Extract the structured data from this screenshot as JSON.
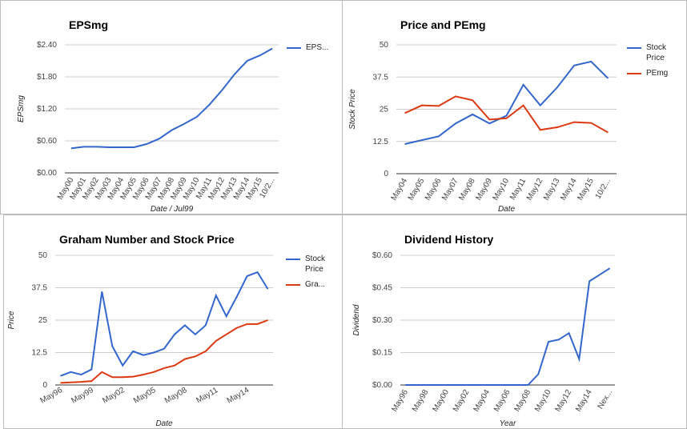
{
  "chart_data": [
    {
      "type": "line",
      "title": "EPSmg",
      "x_label": "Date / Jul99",
      "y_label": "EPSmg",
      "legend": "right",
      "categories": [
        "May00",
        "May01",
        "May02",
        "May03",
        "May04",
        "May05",
        "May06",
        "May07",
        "May08",
        "May09",
        "May10",
        "May11",
        "May12",
        "May13",
        "May14",
        "May15",
        "10/2..."
      ],
      "series": [
        {
          "name": "EPS...",
          "color": "#3366cc",
          "values": [
            0.46,
            0.49,
            0.49,
            0.48,
            0.48,
            0.48,
            0.54,
            0.64,
            0.8,
            0.92,
            1.05,
            1.28,
            1.55,
            1.85,
            2.1,
            2.2,
            2.33
          ]
        }
      ],
      "ylim": [
        0,
        2.4
      ],
      "yticks": [
        {
          "value": 0,
          "label": "$0.00"
        },
        {
          "value": 0.6,
          "label": "$0.60"
        },
        {
          "value": 1.2,
          "label": "$1.20"
        },
        {
          "value": 1.8,
          "label": "$1.80"
        },
        {
          "value": 2.4,
          "label": "$2.40"
        }
      ],
      "grid": true
    },
    {
      "type": "line",
      "title": "Price and PEmg",
      "x_label": "Date",
      "y_label": "Stock Price",
      "legend": "right",
      "categories": [
        "May04",
        "May05",
        "May06",
        "May07",
        "May08",
        "May09",
        "May10",
        "May11",
        "May12",
        "May13",
        "May14",
        "May15",
        "10/2..."
      ],
      "series": [
        {
          "name": "Stock Price",
          "color": "#3366cc",
          "values": [
            11.5,
            13,
            14.5,
            19.5,
            23,
            19.5,
            22.5,
            34.5,
            26.5,
            33.5,
            42,
            43.5,
            37
          ]
        },
        {
          "name": "PEmg",
          "color": "#dc3912",
          "values": [
            23.5,
            26.5,
            26.3,
            30,
            28.5,
            21,
            21.5,
            26.5,
            17,
            18,
            20,
            19.7,
            16
          ]
        }
      ],
      "ylim": [
        0,
        50
      ],
      "yticks": [
        0,
        12.5,
        25,
        37.5,
        50
      ],
      "grid": true
    },
    {
      "type": "line",
      "title": "Graham Number and Stock Price",
      "x_label": "Date",
      "y_label": "Price",
      "legend": "right",
      "categories": [
        "May96",
        null,
        null,
        "May99",
        null,
        null,
        "May02",
        null,
        null,
        "May05",
        null,
        null,
        "May08",
        null,
        null,
        "May11",
        null,
        null,
        "May14",
        null,
        null
      ],
      "series": [
        {
          "name": "Stock Price",
          "color": "#3366cc",
          "values": [
            3.5,
            5,
            4,
            6,
            36,
            15,
            7.5,
            13,
            11.5,
            12.5,
            14,
            19.5,
            23,
            19.5,
            23,
            34.5,
            26.5,
            34,
            42,
            43.5,
            37
          ]
        },
        {
          "name": "Gra...",
          "color": "#dc3912",
          "values": [
            0.8,
            1,
            1.2,
            1.5,
            5,
            3,
            3,
            3.2,
            4,
            5,
            6.5,
            7.5,
            10,
            11,
            13,
            17,
            19.5,
            22,
            23.5,
            23.5,
            25
          ]
        }
      ],
      "ylim": [
        0,
        50
      ],
      "yticks": [
        0,
        12.5,
        25,
        37.5,
        50
      ],
      "grid": true
    },
    {
      "type": "line",
      "title": "Dividend History",
      "x_label": "Year",
      "y_label": "Dividend",
      "categories": [
        "May96",
        null,
        "May98",
        null,
        "May00",
        null,
        "May02",
        null,
        "May04",
        null,
        "May06",
        null,
        "May08",
        null,
        "May10",
        null,
        "May12",
        null,
        "May14",
        null,
        "Nex..."
      ],
      "series": [
        {
          "color": "#3366cc",
          "values": [
            0,
            0,
            0,
            0,
            0,
            0,
            0,
            0,
            0,
            0,
            0,
            0,
            0,
            0.05,
            0.2,
            0.21,
            0.24,
            0.12,
            0.48,
            0.51,
            0.54
          ]
        }
      ],
      "ylim": [
        0,
        0.6
      ],
      "yticks": [
        {
          "value": 0,
          "label": "$0.00"
        },
        {
          "value": 0.15,
          "label": "$0.15"
        },
        {
          "value": 0.3,
          "label": "$0.30"
        },
        {
          "value": 0.45,
          "label": "$0.45"
        },
        {
          "value": 0.6,
          "label": "$0.60"
        }
      ],
      "grid": true
    }
  ]
}
